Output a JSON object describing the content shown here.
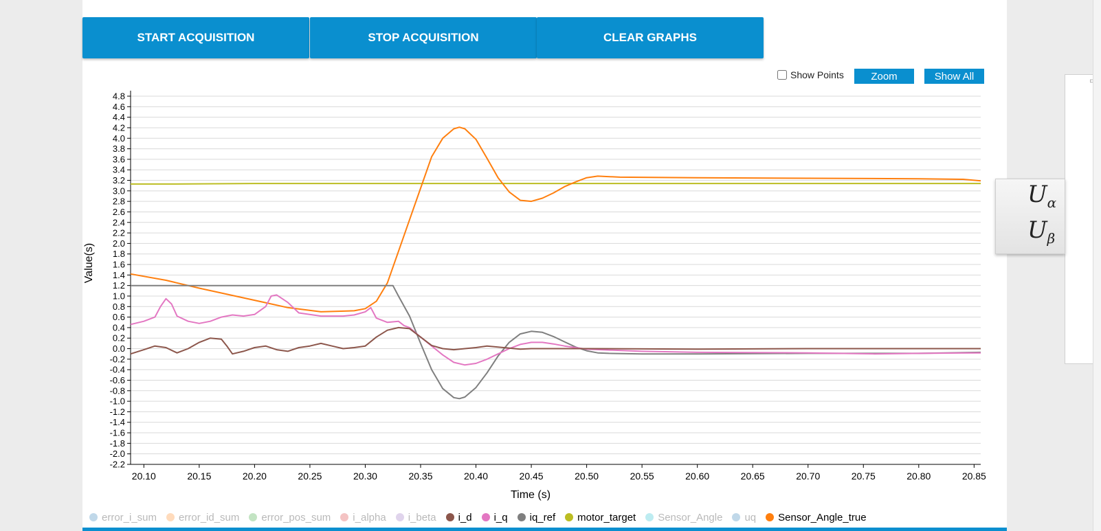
{
  "toolbar": {
    "start_label": "START ACQUISITION",
    "stop_label": "STOP ACQUISITION",
    "clear_label": "CLEAR GRAPHS"
  },
  "controls": {
    "show_points_label": "Show Points",
    "show_points_checked": false,
    "zoom_label": "Zoom",
    "show_all_label": "Show All"
  },
  "formula": {
    "u_alpha_main": "U",
    "u_alpha_sub": "α",
    "u_beta_main": "U",
    "u_beta_sub": "β"
  },
  "legend": [
    {
      "name": "error_i_sum",
      "color": "#1f77b4",
      "active": false
    },
    {
      "name": "error_id_sum",
      "color": "#ff7f0e",
      "active": false
    },
    {
      "name": "error_pos_sum",
      "color": "#2ca02c",
      "active": false
    },
    {
      "name": "i_alpha",
      "color": "#d62728",
      "active": false
    },
    {
      "name": "i_beta",
      "color": "#9467bd",
      "active": false
    },
    {
      "name": "i_d",
      "color": "#8c564b",
      "active": true
    },
    {
      "name": "i_q",
      "color": "#e377c2",
      "active": true
    },
    {
      "name": "iq_ref",
      "color": "#7f7f7f",
      "active": true
    },
    {
      "name": "motor_target",
      "color": "#bcbd22",
      "active": true
    },
    {
      "name": "Sensor_Angle",
      "color": "#17becf",
      "active": false
    },
    {
      "name": "uq",
      "color": "#1f77b4",
      "active": false
    },
    {
      "name": "Sensor_Angle_true",
      "color": "#ff7f0e",
      "active": true
    }
  ],
  "chart_data": {
    "type": "line",
    "title": "",
    "xlabel": "Time (s)",
    "ylabel": "Value(s)",
    "xlim": [
      20.088,
      20.856
    ],
    "ylim": [
      -2.2,
      4.8
    ],
    "x_ticks": [
      "20.10",
      "20.15",
      "20.20",
      "20.25",
      "20.30",
      "20.35",
      "20.40",
      "20.45",
      "20.50",
      "20.55",
      "20.60",
      "20.65",
      "20.70",
      "20.75",
      "20.80",
      "20.85"
    ],
    "y_ticks": [
      "4.8",
      "4.6",
      "4.4",
      "4.2",
      "4.0",
      "3.8",
      "3.6",
      "3.4",
      "3.2",
      "3.0",
      "2.8",
      "2.6",
      "2.4",
      "2.2",
      "2.0",
      "1.8",
      "1.6",
      "1.4",
      "1.2",
      "1.0",
      "0.8",
      "0.6",
      "0.4",
      "0.2",
      "0.0",
      "-0.2",
      "-0.4",
      "-0.6",
      "-0.8",
      "-1.0",
      "-1.2",
      "-1.4",
      "-1.6",
      "-1.8",
      "-2.0",
      "-2.2"
    ],
    "grid": true,
    "series": [
      {
        "name": "motor_target",
        "color": "#bcbd22",
        "x": [
          20.088,
          20.12,
          20.2,
          20.3,
          20.4,
          20.5,
          20.6,
          20.7,
          20.8,
          20.856
        ],
        "y": [
          3.13,
          3.13,
          3.14,
          3.14,
          3.14,
          3.14,
          3.14,
          3.14,
          3.14,
          3.14
        ]
      },
      {
        "name": "Sensor_Angle_true",
        "color": "#ff7f0e",
        "x": [
          20.088,
          20.12,
          20.15,
          20.2,
          20.23,
          20.26,
          20.29,
          20.3,
          20.31,
          20.32,
          20.33,
          20.34,
          20.35,
          20.36,
          20.37,
          20.38,
          20.385,
          20.39,
          20.4,
          20.41,
          20.42,
          20.43,
          20.44,
          20.45,
          20.46,
          20.47,
          20.48,
          20.49,
          20.5,
          20.51,
          20.53,
          20.6,
          20.7,
          20.8,
          20.84,
          20.856
        ],
        "y": [
          1.42,
          1.3,
          1.15,
          0.92,
          0.78,
          0.7,
          0.72,
          0.76,
          0.9,
          1.25,
          1.85,
          2.45,
          3.05,
          3.65,
          4.0,
          4.18,
          4.21,
          4.18,
          3.98,
          3.62,
          3.25,
          2.98,
          2.82,
          2.8,
          2.86,
          2.96,
          3.08,
          3.17,
          3.25,
          3.28,
          3.26,
          3.25,
          3.24,
          3.23,
          3.22,
          3.19
        ]
      },
      {
        "name": "iq_ref",
        "color": "#7f7f7f",
        "x": [
          20.088,
          20.32,
          20.325,
          20.33,
          20.34,
          20.35,
          20.36,
          20.37,
          20.38,
          20.385,
          20.39,
          20.4,
          20.41,
          20.42,
          20.43,
          20.44,
          20.45,
          20.46,
          20.47,
          20.48,
          20.49,
          20.5,
          20.51,
          20.52,
          20.55,
          20.6,
          20.7,
          20.8,
          20.856
        ],
        "y": [
          1.2,
          1.2,
          1.2,
          1.0,
          0.62,
          0.1,
          -0.4,
          -0.76,
          -0.93,
          -0.95,
          -0.92,
          -0.74,
          -0.46,
          -0.14,
          0.12,
          0.28,
          0.33,
          0.31,
          0.23,
          0.13,
          0.03,
          -0.04,
          -0.08,
          -0.09,
          -0.1,
          -0.1,
          -0.09,
          -0.09,
          -0.07
        ]
      },
      {
        "name": "i_q",
        "color": "#e377c2",
        "x": [
          20.088,
          20.1,
          20.11,
          20.115,
          20.12,
          20.125,
          20.13,
          20.14,
          20.15,
          20.16,
          20.17,
          20.18,
          20.19,
          20.2,
          20.21,
          20.215,
          20.22,
          20.23,
          20.24,
          20.26,
          20.28,
          20.29,
          20.3,
          20.305,
          20.31,
          20.32,
          20.33,
          20.335,
          20.34,
          20.35,
          20.36,
          20.37,
          20.38,
          20.39,
          20.4,
          20.41,
          20.42,
          20.43,
          20.44,
          20.45,
          20.46,
          20.47,
          20.48,
          20.5,
          20.55,
          20.6,
          20.7,
          20.76,
          20.8,
          20.856
        ],
        "y": [
          0.46,
          0.52,
          0.6,
          0.8,
          0.95,
          0.85,
          0.62,
          0.52,
          0.48,
          0.52,
          0.6,
          0.64,
          0.62,
          0.65,
          0.8,
          1.0,
          1.02,
          0.88,
          0.68,
          0.62,
          0.62,
          0.64,
          0.7,
          0.78,
          0.58,
          0.5,
          0.52,
          0.44,
          0.4,
          0.22,
          0.05,
          -0.12,
          -0.26,
          -0.31,
          -0.28,
          -0.2,
          -0.1,
          0.0,
          0.08,
          0.12,
          0.12,
          0.09,
          0.05,
          -0.01,
          -0.05,
          -0.07,
          -0.08,
          -0.1,
          -0.09,
          -0.08
        ]
      },
      {
        "name": "i_d",
        "color": "#8c564b",
        "x": [
          20.088,
          20.1,
          20.11,
          20.12,
          20.13,
          20.14,
          20.15,
          20.16,
          20.17,
          20.175,
          20.18,
          20.19,
          20.2,
          20.21,
          20.22,
          20.23,
          20.24,
          20.25,
          20.26,
          20.27,
          20.28,
          20.29,
          20.3,
          20.31,
          20.32,
          20.33,
          20.34,
          20.35,
          20.36,
          20.37,
          20.38,
          20.39,
          20.4,
          20.41,
          20.42,
          20.43,
          20.44,
          20.45,
          20.5,
          20.6,
          20.7,
          20.8,
          20.856
        ],
        "y": [
          -0.1,
          -0.02,
          0.05,
          0.02,
          -0.08,
          0.0,
          0.12,
          0.2,
          0.18,
          0.05,
          -0.1,
          -0.05,
          0.02,
          0.05,
          -0.02,
          -0.05,
          0.02,
          0.05,
          0.1,
          0.05,
          0.0,
          0.02,
          0.05,
          0.22,
          0.35,
          0.4,
          0.38,
          0.22,
          0.06,
          0.0,
          -0.02,
          0.0,
          0.02,
          0.05,
          0.03,
          0.01,
          -0.01,
          0.0,
          0.0,
          -0.01,
          0.0,
          0.0,
          0.0
        ]
      }
    ]
  }
}
